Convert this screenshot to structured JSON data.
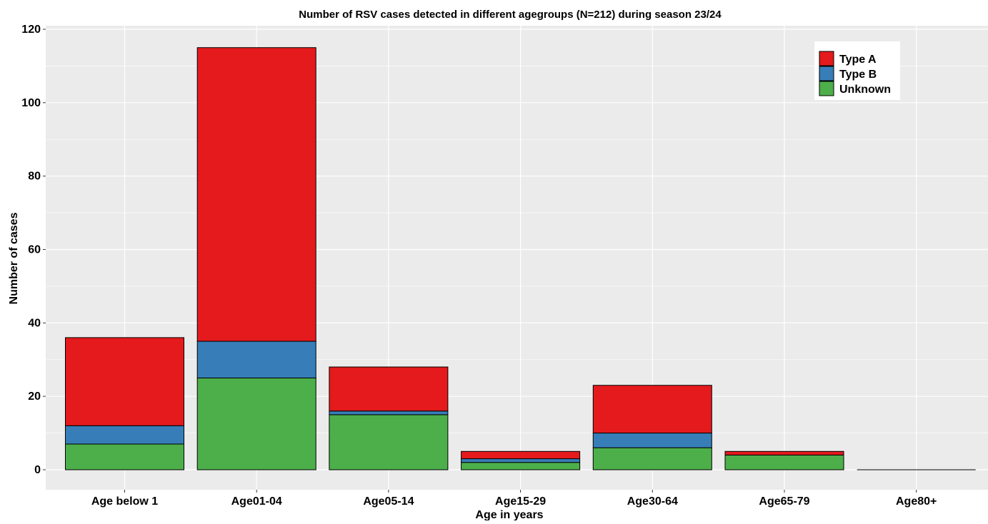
{
  "chart_data": {
    "type": "bar",
    "stacked": true,
    "title": "Number of RSV cases detected in different agegroups (N=212) during season 23/24",
    "xlabel": "Age in years",
    "ylabel": "Number of cases",
    "categories": [
      "Age below 1",
      "Age01-04",
      "Age05-14",
      "Age15-29",
      "Age30-64",
      "Age65-79",
      "Age80+"
    ],
    "series": [
      {
        "name": "Unknown",
        "color": "#4DAF4A",
        "values": [
          7,
          25,
          15,
          2,
          6,
          4,
          0
        ]
      },
      {
        "name": "Type B",
        "color": "#377EB8",
        "values": [
          5,
          10,
          1,
          1,
          4,
          0,
          0
        ]
      },
      {
        "name": "Type A",
        "color": "#E41A1C",
        "values": [
          24,
          80,
          12,
          2,
          13,
          1,
          0
        ]
      }
    ],
    "legend_order": [
      "Type A",
      "Type B",
      "Unknown"
    ],
    "ylim": [
      0,
      121
    ],
    "yticks": [
      0,
      20,
      40,
      60,
      80,
      100,
      120
    ],
    "ytick_labels": [
      "0",
      "20",
      "40",
      "60",
      "80",
      "100",
      "120"
    ],
    "grid": true,
    "legend_position": "top-right",
    "panel_background": "#EBEBEB",
    "grid_color": "#FFFFFF"
  }
}
